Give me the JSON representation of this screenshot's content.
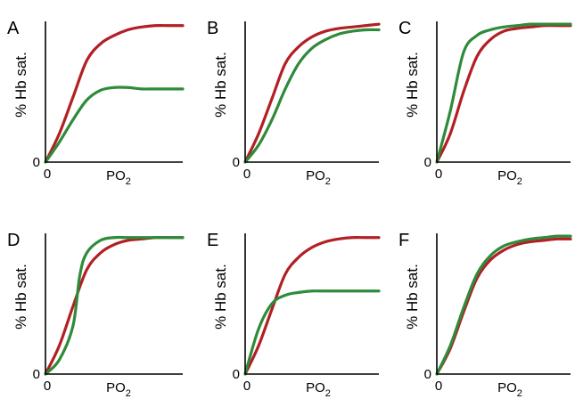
{
  "colors": {
    "red": "#b21f24",
    "green": "#2e8b3a",
    "axis": "#000000"
  },
  "chart_data": [
    {
      "panel": "A",
      "type": "line",
      "ylabel": "% Hb sat.",
      "xlabel": "PO2",
      "xlabel_main": "PO",
      "xlabel_sub": "2",
      "origin_x_label": "0",
      "origin_y_label": "0",
      "xlim": [
        0,
        1
      ],
      "ylim": [
        0,
        1
      ],
      "series": [
        {
          "color": "red",
          "x": [
            0,
            0.1,
            0.2,
            0.3,
            0.4,
            0.5,
            0.6,
            0.7,
            0.8,
            0.9,
            1
          ],
          "y": [
            0,
            0.2,
            0.46,
            0.72,
            0.84,
            0.9,
            0.94,
            0.96,
            0.97,
            0.97,
            0.97
          ]
        },
        {
          "color": "green",
          "x": [
            0,
            0.1,
            0.2,
            0.3,
            0.4,
            0.5,
            0.6,
            0.7,
            0.8,
            0.9,
            1
          ],
          "y": [
            0,
            0.14,
            0.3,
            0.44,
            0.51,
            0.53,
            0.53,
            0.52,
            0.52,
            0.52,
            0.52
          ]
        }
      ]
    },
    {
      "panel": "B",
      "type": "line",
      "ylabel": "% Hb sat.",
      "xlabel": "PO2",
      "xlabel_main": "PO",
      "xlabel_sub": "2",
      "origin_x_label": "0",
      "origin_y_label": "0",
      "xlim": [
        0,
        1
      ],
      "ylim": [
        0,
        1
      ],
      "series": [
        {
          "color": "red",
          "x": [
            0,
            0.1,
            0.2,
            0.3,
            0.4,
            0.5,
            0.6,
            0.7,
            0.8,
            0.9,
            1
          ],
          "y": [
            0,
            0.2,
            0.45,
            0.7,
            0.82,
            0.89,
            0.93,
            0.95,
            0.96,
            0.97,
            0.98
          ]
        },
        {
          "color": "green",
          "x": [
            0,
            0.1,
            0.2,
            0.3,
            0.4,
            0.5,
            0.6,
            0.7,
            0.8,
            0.9,
            1
          ],
          "y": [
            0,
            0.12,
            0.3,
            0.52,
            0.7,
            0.81,
            0.87,
            0.91,
            0.93,
            0.94,
            0.94
          ]
        }
      ]
    },
    {
      "panel": "C",
      "type": "line",
      "ylabel": "% Hb sat.",
      "xlabel": "PO2",
      "xlabel_main": "PO",
      "xlabel_sub": "2",
      "origin_x_label": "0",
      "origin_y_label": "0",
      "xlim": [
        0,
        1
      ],
      "ylim": [
        0,
        1
      ],
      "series": [
        {
          "color": "red",
          "x": [
            0,
            0.1,
            0.2,
            0.3,
            0.4,
            0.5,
            0.6,
            0.7,
            0.8,
            0.9,
            1
          ],
          "y": [
            0,
            0.2,
            0.5,
            0.75,
            0.87,
            0.93,
            0.95,
            0.96,
            0.97,
            0.97,
            0.97
          ]
        },
        {
          "color": "green",
          "x": [
            0,
            0.1,
            0.2,
            0.3,
            0.4,
            0.5,
            0.6,
            0.7,
            0.8,
            0.9,
            1
          ],
          "y": [
            0,
            0.36,
            0.78,
            0.9,
            0.94,
            0.96,
            0.97,
            0.98,
            0.98,
            0.98,
            0.98
          ]
        }
      ]
    },
    {
      "panel": "D",
      "type": "line",
      "ylabel": "% Hb sat.",
      "xlabel": "PO2",
      "xlabel_main": "PO",
      "xlabel_sub": "2",
      "origin_x_label": "0",
      "origin_y_label": "0",
      "xlim": [
        0,
        1
      ],
      "ylim": [
        0,
        1
      ],
      "series": [
        {
          "color": "red",
          "x": [
            0,
            0.1,
            0.2,
            0.3,
            0.4,
            0.5,
            0.6,
            0.7,
            0.8,
            0.9,
            1
          ],
          "y": [
            0,
            0.2,
            0.48,
            0.74,
            0.86,
            0.92,
            0.95,
            0.96,
            0.97,
            0.97,
            0.97
          ]
        },
        {
          "color": "green",
          "x": [
            0,
            0.1,
            0.2,
            0.25,
            0.3,
            0.4,
            0.5,
            0.6,
            0.7,
            0.8,
            0.9,
            1
          ],
          "y": [
            0,
            0.1,
            0.34,
            0.7,
            0.86,
            0.95,
            0.97,
            0.97,
            0.97,
            0.97,
            0.97,
            0.97
          ]
        }
      ]
    },
    {
      "panel": "E",
      "type": "line",
      "ylabel": "% Hb sat.",
      "xlabel": "PO2",
      "xlabel_main": "PO",
      "xlabel_sub": "2",
      "origin_x_label": "0",
      "origin_y_label": "0",
      "xlim": [
        0,
        1
      ],
      "ylim": [
        0,
        1
      ],
      "series": [
        {
          "color": "red",
          "x": [
            0,
            0.1,
            0.2,
            0.3,
            0.4,
            0.5,
            0.6,
            0.7,
            0.8,
            0.9,
            1
          ],
          "y": [
            0,
            0.2,
            0.46,
            0.71,
            0.83,
            0.9,
            0.94,
            0.96,
            0.97,
            0.97,
            0.97
          ]
        },
        {
          "color": "green",
          "x": [
            0,
            0.1,
            0.2,
            0.3,
            0.4,
            0.5,
            0.6,
            0.7,
            0.8,
            0.9,
            1
          ],
          "y": [
            0,
            0.32,
            0.5,
            0.56,
            0.58,
            0.59,
            0.59,
            0.59,
            0.59,
            0.59,
            0.59
          ]
        }
      ]
    },
    {
      "panel": "F",
      "type": "line",
      "ylabel": "% Hb sat.",
      "xlabel": "PO2",
      "xlabel_main": "PO",
      "xlabel_sub": "2",
      "origin_x_label": "0",
      "origin_y_label": "0",
      "xlim": [
        0,
        1
      ],
      "ylim": [
        0,
        1
      ],
      "series": [
        {
          "color": "red",
          "x": [
            0,
            0.1,
            0.2,
            0.3,
            0.4,
            0.5,
            0.6,
            0.7,
            0.8,
            0.9,
            1
          ],
          "y": [
            0,
            0.18,
            0.44,
            0.68,
            0.81,
            0.88,
            0.92,
            0.94,
            0.95,
            0.96,
            0.96
          ]
        },
        {
          "color": "green",
          "x": [
            0,
            0.1,
            0.2,
            0.3,
            0.4,
            0.5,
            0.6,
            0.7,
            0.8,
            0.9,
            1
          ],
          "y": [
            0,
            0.2,
            0.47,
            0.71,
            0.84,
            0.91,
            0.94,
            0.96,
            0.97,
            0.98,
            0.98
          ]
        }
      ]
    }
  ]
}
